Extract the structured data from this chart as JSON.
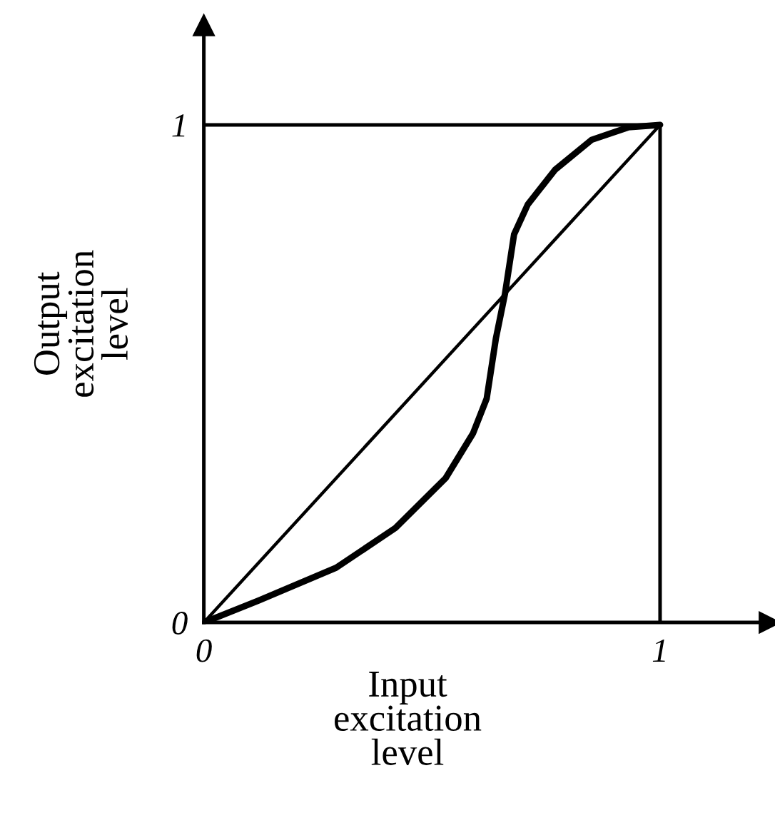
{
  "chart_data": {
    "type": "line",
    "xlabel": "Input\nexcitation\nlevel",
    "ylabel": "Output\nexcitation\nlevel",
    "xlim": [
      0,
      1.24
    ],
    "ylim": [
      0,
      1.2
    ],
    "xticks": [
      0,
      1
    ],
    "yticks": [
      0,
      1
    ],
    "grid": false,
    "legend": false,
    "marker": "none",
    "line_style": "solid",
    "series": [
      {
        "color": "#000000",
        "x": [
          0,
          1
        ],
        "values": [
          0,
          1
        ]
      },
      {
        "color": "#000000",
        "x": [
          0,
          0.12,
          0.29,
          0.42,
          0.53,
          0.59,
          0.62,
          0.64,
          0.66,
          0.68,
          0.71,
          0.77,
          0.85,
          0.93,
          1
        ],
        "values": [
          0,
          0.044,
          0.11,
          0.19,
          0.29,
          0.38,
          0.45,
          0.57,
          0.66,
          0.78,
          0.84,
          0.91,
          0.97,
          0.995,
          1
        ]
      },
      {
        "color": "#000000",
        "x": [
          1,
          1
        ],
        "values": [
          0,
          1
        ]
      },
      {
        "color": "#000000",
        "x": [
          0,
          1
        ],
        "values": [
          1,
          1
        ]
      }
    ]
  }
}
